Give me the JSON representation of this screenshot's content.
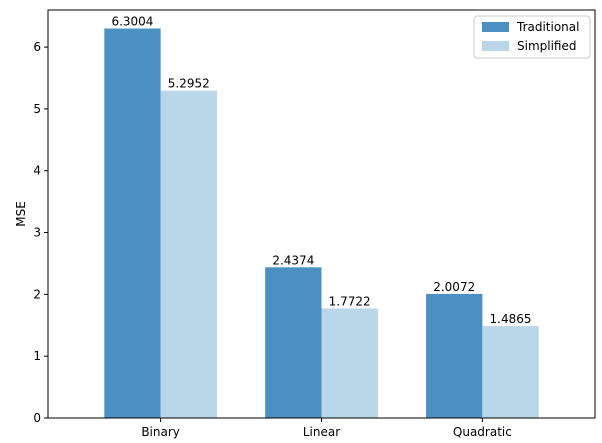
{
  "chart_data": {
    "type": "bar",
    "categories": [
      "Binary",
      "Linear",
      "Quadratic"
    ],
    "series": [
      {
        "name": "Traditional",
        "values": [
          6.3004,
          2.4374,
          2.0072
        ],
        "labels": [
          "6.3004",
          "2.4374",
          "2.0072"
        ],
        "color": "#4b8fc3"
      },
      {
        "name": "Simplified",
        "values": [
          5.2952,
          1.7722,
          1.4865
        ],
        "labels": [
          "5.2952",
          "1.7722",
          "1.4865"
        ],
        "color": "#bad6e9"
      }
    ],
    "xlabel": "",
    "ylabel": "MSE",
    "ylim": [
      0,
      6.6
    ],
    "yticks": [
      0,
      1,
      2,
      3,
      4,
      5,
      6
    ],
    "grid": false,
    "legend_position": "top-right"
  }
}
